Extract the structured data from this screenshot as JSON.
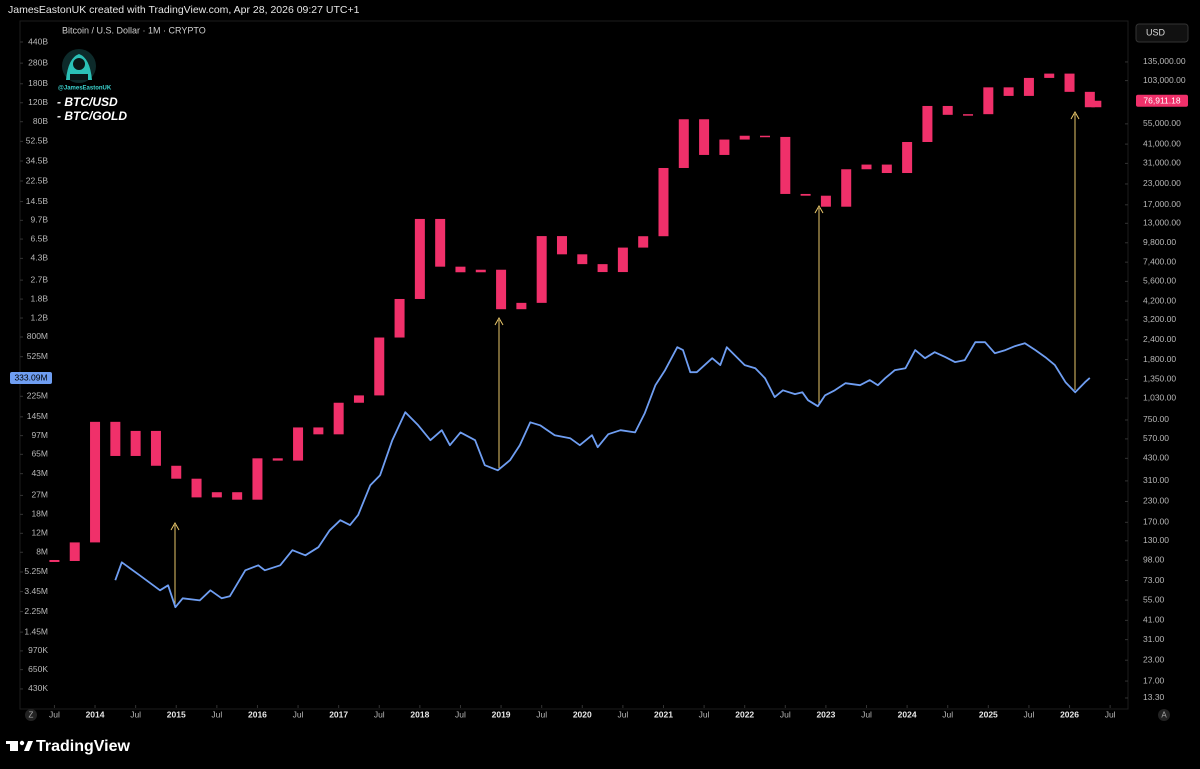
{
  "header": "JamesEastonUK created with TradingView.com, Apr 28, 2026 09:27 UTC+1",
  "chart_data": {
    "type": "candlestick",
    "title": "Bitcoin / U.S. Dollar · 1M · CRYPTO",
    "handle": "@JamesEastonUK",
    "currency": "USD",
    "log_scale": true,
    "grid": false,
    "xlim": [
      2013.076,
      2026.72
    ],
    "xticks": [
      {
        "value": 2013.5,
        "label": "Jul"
      },
      2014,
      {
        "value": 2014.5,
        "label": "Jul"
      },
      2015,
      {
        "value": 2015.5,
        "label": "Jul"
      },
      2016,
      {
        "value": 2016.5,
        "label": "Jul"
      },
      2017,
      {
        "value": 2017.5,
        "label": "Jul"
      },
      2018,
      {
        "value": 2018.5,
        "label": "Jul"
      },
      2019,
      {
        "value": 2019.5,
        "label": "Jul"
      },
      2020,
      {
        "value": 2020.5,
        "label": "Jul"
      },
      2021,
      {
        "value": 2021.5,
        "label": "Jul"
      },
      2022,
      {
        "value": 2022.5,
        "label": "Jul"
      },
      2023,
      {
        "value": 2023.5,
        "label": "Jul"
      },
      2024,
      {
        "value": 2024.5,
        "label": "Jul"
      },
      2025,
      {
        "value": 2025.5,
        "label": "Jul"
      },
      2026,
      {
        "value": 2026.5,
        "label": "Jul"
      }
    ],
    "ylim": [
      286000,
      675000000000
    ],
    "yticks": [
      {
        "value": 440000000000,
        "label": "440B"
      },
      {
        "value": 280000000000,
        "label": "280B"
      },
      {
        "value": 180000000000,
        "label": "180B"
      },
      {
        "value": 120000000000,
        "label": "120B"
      },
      {
        "value": 80000000000,
        "label": "80B"
      },
      {
        "value": 52500000000,
        "label": "52.5B"
      },
      {
        "value": 34500000000,
        "label": "34.5B"
      },
      {
        "value": 22500000000,
        "label": "22.5B"
      },
      {
        "value": 14500000000,
        "label": "14.5B"
      },
      {
        "value": 9700000000,
        "label": "9.7B"
      },
      {
        "value": 6500000000,
        "label": "6.5B"
      },
      {
        "value": 4300000000,
        "label": "4.3B"
      },
      {
        "value": 2700000000,
        "label": "2.7B"
      },
      {
        "value": 1800000000,
        "label": "1.8B"
      },
      {
        "value": 1200000000,
        "label": "1.2B"
      },
      {
        "value": 800000000,
        "label": "800M"
      },
      {
        "value": 525000000,
        "label": "525M"
      },
      {
        "value": 225000000,
        "label": "225M"
      },
      {
        "value": 145000000,
        "label": "145M"
      },
      {
        "value": 97000000,
        "label": "97M"
      },
      {
        "value": 65000000,
        "label": "65M"
      },
      {
        "value": 43000000,
        "label": "43M"
      },
      {
        "value": 27000000,
        "label": "27M"
      },
      {
        "value": 18000000,
        "label": "18M"
      },
      {
        "value": 12000000,
        "label": "12M"
      },
      {
        "value": 8000000,
        "label": "8M"
      },
      {
        "value": 5250000,
        "label": "5.25M"
      },
      {
        "value": 3450000,
        "label": "3.45M"
      },
      {
        "value": 2250000,
        "label": "2.25M"
      },
      {
        "value": 1450000,
        "label": "1.45M"
      },
      {
        "value": 970000,
        "label": "970K"
      },
      {
        "value": 650000,
        "label": "650K"
      },
      {
        "value": 430000,
        "label": "430K"
      }
    ],
    "y2lim": [
      11.5,
      241000
    ],
    "y2ticks": [
      {
        "value": 135000,
        "label": "135,000.00"
      },
      {
        "value": 103000,
        "label": "103,000.00"
      },
      {
        "value": 55000,
        "label": "55,000.00"
      },
      {
        "value": 41000,
        "label": "41,000.00"
      },
      {
        "value": 31000,
        "label": "31,000.00"
      },
      {
        "value": 23000,
        "label": "23,000.00"
      },
      {
        "value": 17000,
        "label": "17,000.00"
      },
      {
        "value": 13000,
        "label": "13,000.00"
      },
      {
        "value": 9800,
        "label": "9,800.00"
      },
      {
        "value": 7400,
        "label": "7,400.00"
      },
      {
        "value": 5600,
        "label": "5,600.00"
      },
      {
        "value": 4200,
        "label": "4,200.00"
      },
      {
        "value": 3200,
        "label": "3,200.00"
      },
      {
        "value": 2400,
        "label": "2,400.00"
      },
      {
        "value": 1800,
        "label": "1,800.00"
      },
      {
        "value": 1350,
        "label": "1,350.00"
      },
      {
        "value": 1030,
        "label": "1,030.00"
      },
      {
        "value": 750,
        "label": "750.00"
      },
      {
        "value": 570,
        "label": "570.00"
      },
      {
        "value": 430,
        "label": "430.00"
      },
      {
        "value": 310,
        "label": "310.00"
      },
      {
        "value": 230,
        "label": "230.00"
      },
      {
        "value": 170,
        "label": "170.00"
      },
      {
        "value": 130,
        "label": "130.00"
      },
      {
        "value": 98,
        "label": "98.00"
      },
      {
        "value": 73,
        "label": "73.00"
      },
      {
        "value": 55,
        "label": "55.00"
      },
      {
        "value": 41,
        "label": "41.00"
      },
      {
        "value": 31,
        "label": "31.00"
      },
      {
        "value": 23,
        "label": "23.00"
      },
      {
        "value": 17,
        "label": "17.00"
      },
      {
        "value": 13.3,
        "label": "13.30"
      }
    ],
    "series": [
      {
        "name": "- BTC/USD",
        "type": "candlestick",
        "axis": "y2",
        "color": "#f0306a",
        "x": [
          2013.5,
          2013.75,
          2014.0,
          2014.25,
          2014.5,
          2014.75,
          2015.0,
          2015.25,
          2015.5,
          2015.75,
          2016.0,
          2016.25,
          2016.5,
          2016.75,
          2017.0,
          2017.25,
          2017.5,
          2017.75,
          2018.0,
          2018.25,
          2018.5,
          2018.75,
          2019.0,
          2019.25,
          2019.5,
          2019.75,
          2020.0,
          2020.25,
          2020.5,
          2020.75,
          2021.0,
          2021.25,
          2021.5,
          2021.75,
          2022.0,
          2022.25,
          2022.5,
          2022.75,
          2023.0,
          2023.25,
          2023.5,
          2023.75,
          2024.0,
          2024.25,
          2024.5,
          2024.75,
          2025.0,
          2025.25,
          2025.5,
          2025.75,
          2026.0,
          2026.25,
          2026.33
        ],
        "values": [
          97,
          127,
          730,
          445,
          640,
          386,
          320,
          244,
          263,
          236,
          430,
          416,
          673,
          609,
          963,
          1071,
          2480,
          4338,
          13850,
          6930,
          6390,
          6630,
          3740,
          4100,
          10800,
          8290,
          7190,
          6410,
          9140,
          10780,
          29000,
          58800,
          35040,
          43800,
          46300,
          45500,
          19900,
          19400,
          16540,
          28470,
          30470,
          26960,
          42280,
          71300,
          62700,
          63300,
          93400,
          82500,
          107100,
          114000,
          87500,
          70000,
          76911.18
        ],
        "last_value_label": "76,911.18"
      },
      {
        "name": "- BTC/GOLD",
        "type": "line",
        "axis": "y",
        "color": "#6f9ef2",
        "x": [
          2014.25,
          2014.33,
          2014.55,
          2014.8,
          2014.9,
          2014.99,
          2015.08,
          2015.29,
          2015.42,
          2015.56,
          2015.66,
          2015.85,
          2016.01,
          2016.09,
          2016.28,
          2016.43,
          2016.59,
          2016.75,
          2016.89,
          2017.02,
          2017.14,
          2017.24,
          2017.39,
          2017.51,
          2017.66,
          2017.82,
          2017.98,
          2018.13,
          2018.27,
          2018.37,
          2018.5,
          2018.68,
          2018.8,
          2018.96,
          2019.11,
          2019.23,
          2019.36,
          2019.48,
          2019.66,
          2019.85,
          2019.97,
          2020.12,
          2020.19,
          2020.32,
          2020.47,
          2020.65,
          2020.77,
          2020.9,
          2021.02,
          2021.17,
          2021.24,
          2021.33,
          2021.41,
          2021.6,
          2021.7,
          2021.78,
          2022.0,
          2022.13,
          2022.25,
          2022.37,
          2022.47,
          2022.62,
          2022.71,
          2022.78,
          2022.9,
          2022.99,
          2023.11,
          2023.24,
          2023.42,
          2023.54,
          2023.64,
          2023.73,
          2023.85,
          2023.98,
          2024.1,
          2024.22,
          2024.34,
          2024.47,
          2024.59,
          2024.71,
          2024.84,
          2024.96,
          2025.08,
          2025.21,
          2025.33,
          2025.45,
          2025.58,
          2025.7,
          2025.82,
          2025.95,
          2026.07,
          2026.19,
          2026.25
        ],
        "values": [
          4400000,
          6460000,
          4890000,
          3550000,
          3950000,
          2470000,
          2990000,
          2860000,
          3550000,
          2990000,
          3120000,
          5440000,
          6050000,
          5440000,
          6050000,
          8360000,
          7500000,
          8910000,
          12800000,
          15900000,
          14300000,
          17700000,
          33600000,
          41600000,
          87900000,
          160000000,
          121000000,
          87900000,
          109000000,
          79100000,
          104000000,
          87900000,
          51500000,
          46200000,
          57300000,
          79100000,
          129000000,
          121000000,
          97900000,
          91800000,
          79100000,
          97900000,
          75700000,
          100000000,
          109000000,
          104000000,
          157000000,
          285000000,
          394000000,
          643000000,
          604000000,
          377000000,
          377000000,
          508000000,
          438000000,
          643000000,
          438000000,
          410000000,
          331000000,
          221000000,
          256000000,
          236000000,
          245000000,
          207000000,
          182000000,
          230000000,
          256000000,
          298000000,
          285000000,
          318000000,
          285000000,
          331000000,
          394000000,
          410000000,
          604000000,
          508000000,
          578000000,
          520000000,
          467000000,
          488000000,
          716000000,
          716000000,
          566000000,
          604000000,
          658000000,
          701000000,
          604000000,
          520000000,
          438000000,
          304000000,
          245000000,
          304000000,
          333090000
        ],
        "last_value_label": "333.09M"
      }
    ]
  },
  "footer": {
    "brand": "TradingView",
    "buttons": [
      "Z",
      "A"
    ]
  }
}
